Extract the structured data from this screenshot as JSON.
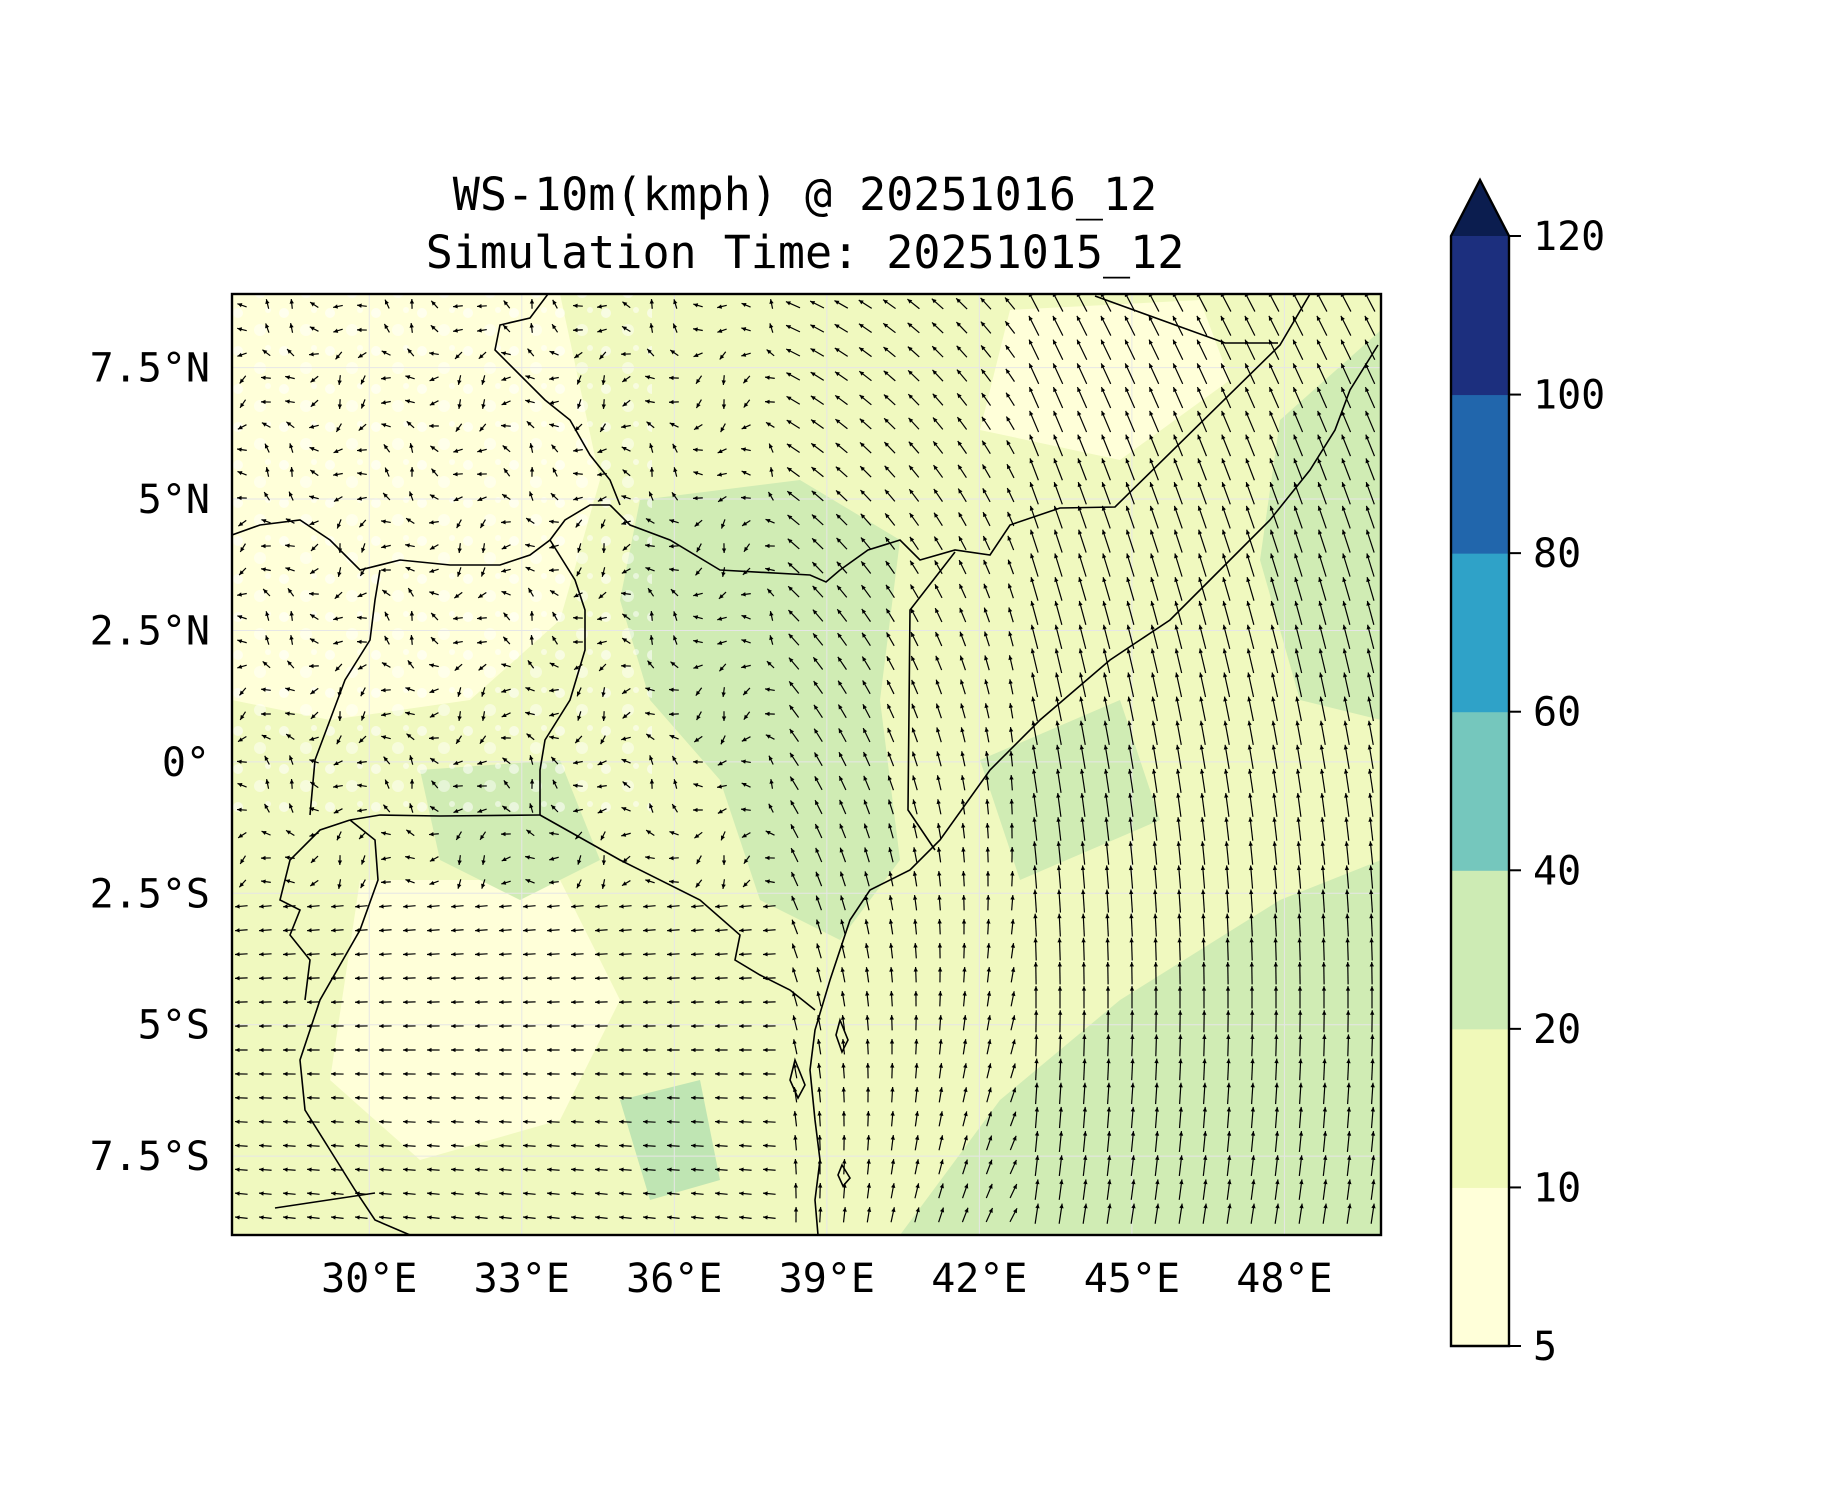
{
  "title": {
    "line1": "WS-10m(kmph) @ 20251016_12",
    "line2": "Simulation Time: 20251015_12"
  },
  "map": {
    "lon_range": [
      27.3,
      49.9
    ],
    "lat_range": [
      -9.0,
      8.9
    ],
    "lon_ticks": [
      {
        "value": 30,
        "label": "30°E"
      },
      {
        "value": 33,
        "label": "33°E"
      },
      {
        "value": 36,
        "label": "36°E"
      },
      {
        "value": 39,
        "label": "39°E"
      },
      {
        "value": 42,
        "label": "42°E"
      },
      {
        "value": 45,
        "label": "45°E"
      },
      {
        "value": 48,
        "label": "48°E"
      }
    ],
    "lat_ticks": [
      {
        "value": 7.5,
        "label": "7.5°N"
      },
      {
        "value": 5,
        "label": "5°N"
      },
      {
        "value": 2.5,
        "label": "2.5°N"
      },
      {
        "value": 0,
        "label": "0°"
      },
      {
        "value": -2.5,
        "label": "2.5°S"
      },
      {
        "value": -5,
        "label": "5°S"
      },
      {
        "value": -7.5,
        "label": "7.5°S"
      }
    ],
    "field_colors": {
      "low": "#ffffd9",
      "mid": "#f0f9bf",
      "high": "#d0ecb4",
      "gust": "#bfe5b3"
    }
  },
  "colorbar": {
    "levels": [
      5,
      10,
      20,
      40,
      60,
      80,
      100,
      120
    ],
    "labels": [
      "5",
      "10",
      "20",
      "40",
      "60",
      "80",
      "100",
      "120"
    ],
    "colors": [
      "#ffffd9",
      "#f0f9b9",
      "#cdebb4",
      "#75c7bd",
      "#2fa2c8",
      "#2166ac",
      "#1c2f7e"
    ],
    "extend_color": "#0b1d4f",
    "extend": "max"
  }
}
